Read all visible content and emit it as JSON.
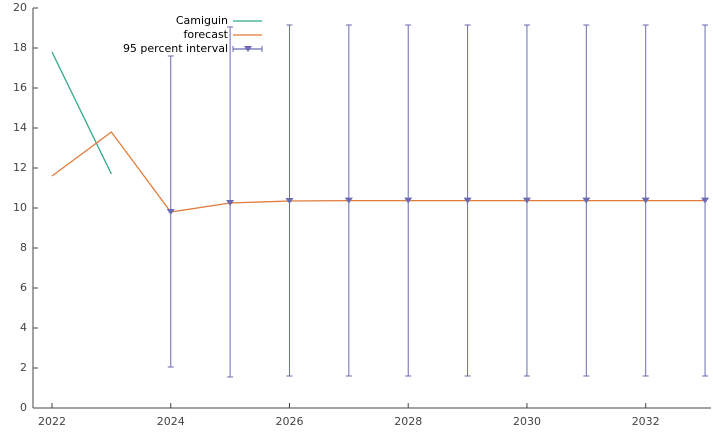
{
  "chart_data": {
    "type": "line",
    "xlim": [
      2021.68,
      2033.1
    ],
    "xticks": [
      2022,
      2024,
      2026,
      2028,
      2030,
      2032
    ],
    "ylim": [
      0,
      20
    ],
    "yticks": [
      0,
      2,
      4,
      6,
      8,
      10,
      12,
      14,
      16,
      18,
      20
    ],
    "grid": false,
    "legend": "top",
    "series": [
      {
        "name": "Camiguin",
        "color": "#2fa88a",
        "x": [
          2022,
          2023
        ],
        "values": [
          17.8,
          11.7
        ]
      },
      {
        "name": "forecast",
        "color": "#e07b39",
        "x": [
          2022,
          2023,
          2024,
          2025,
          2026,
          2027,
          2028,
          2029,
          2030,
          2031,
          2032,
          2033
        ],
        "values": [
          11.6,
          13.8,
          9.8,
          10.25,
          10.35,
          10.37,
          10.37,
          10.37,
          10.37,
          10.37,
          10.37,
          10.37
        ]
      },
      {
        "name": "95 percent interval",
        "color": "#6a6ab2",
        "x": [
          2024,
          2025,
          2026,
          2027,
          2028,
          2029,
          2030,
          2031,
          2032,
          2033
        ],
        "values": [
          9.8,
          10.25,
          10.35,
          10.37,
          10.37,
          10.37,
          10.37,
          10.37,
          10.37,
          10.37
        ],
        "low": [
          2.05,
          1.55,
          1.6,
          1.6,
          1.6,
          1.6,
          1.6,
          1.6,
          1.6,
          1.6
        ],
        "high": [
          17.6,
          19.05,
          19.15,
          19.15,
          19.15,
          19.15,
          19.15,
          19.15,
          19.15,
          19.15
        ]
      }
    ]
  }
}
